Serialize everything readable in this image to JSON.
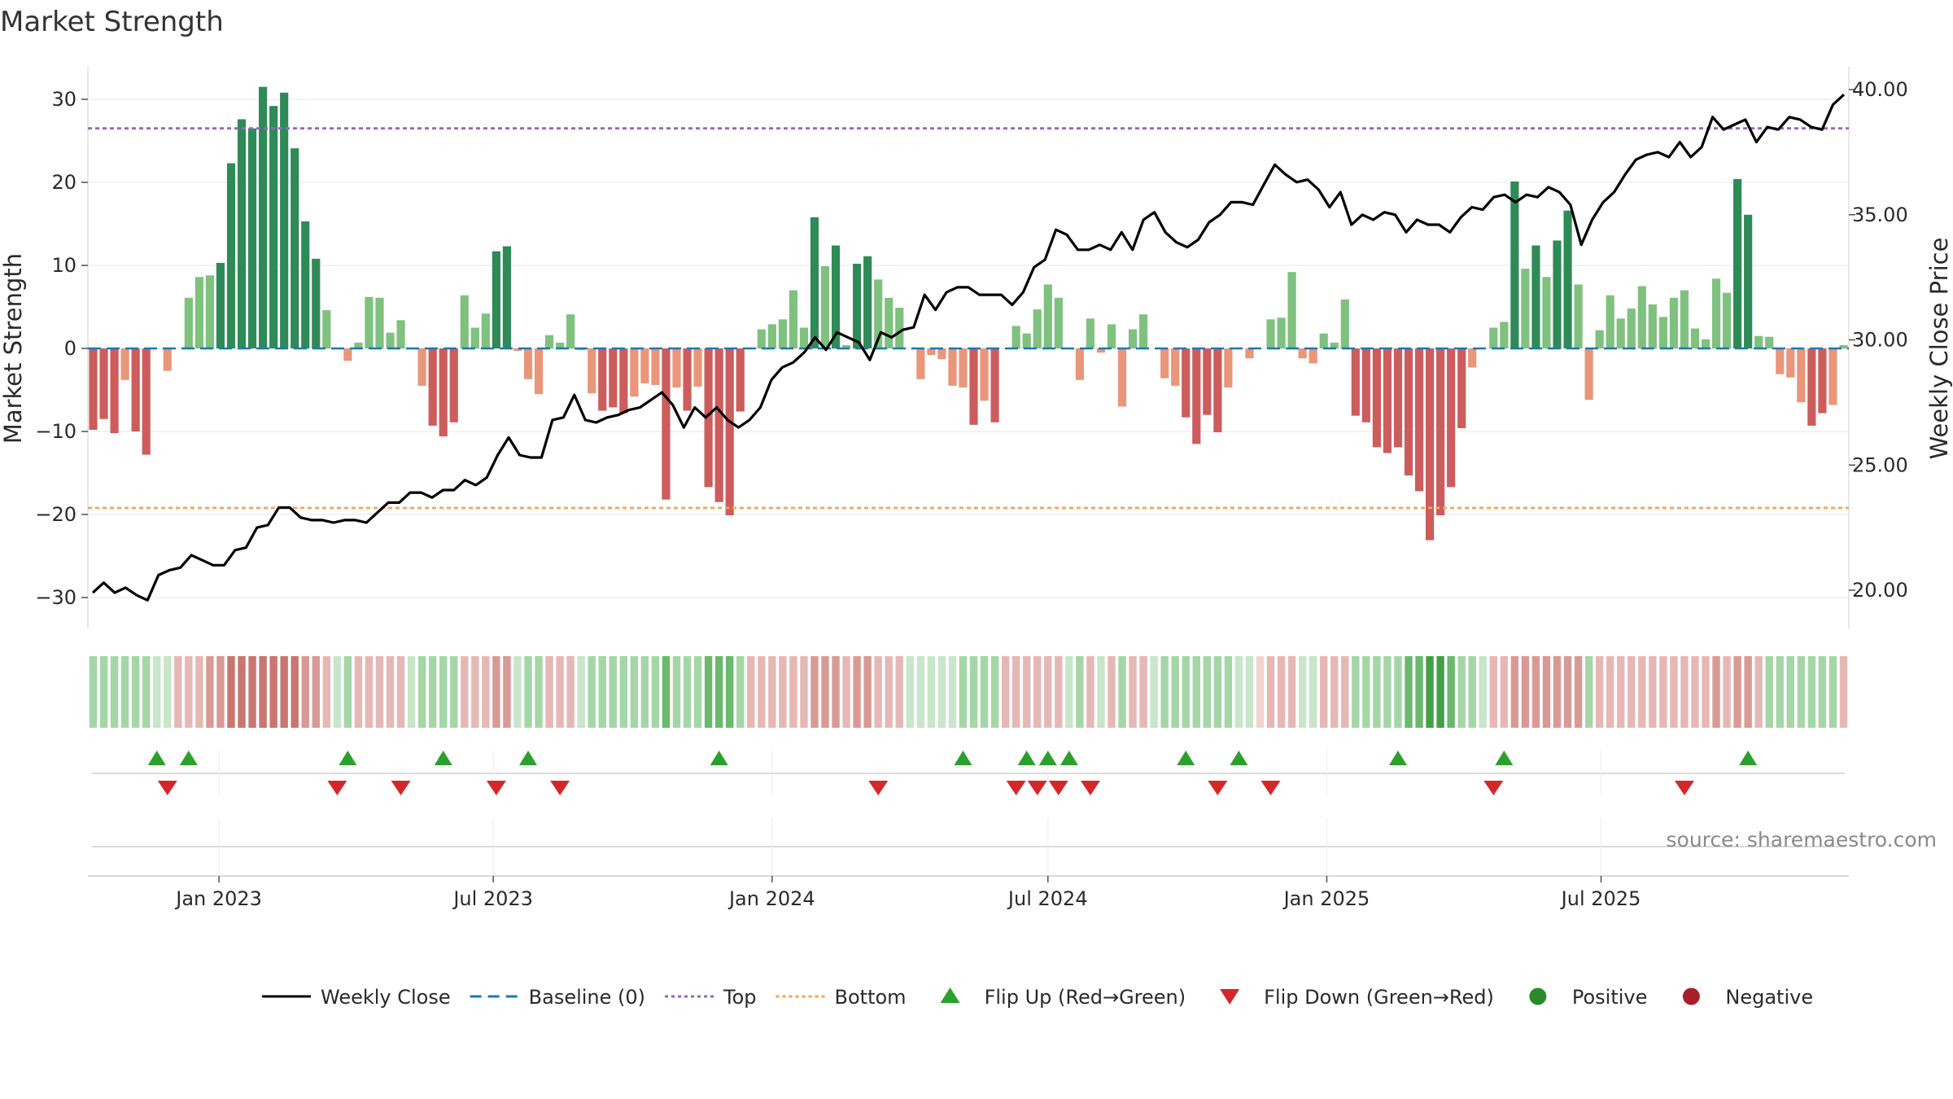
{
  "chart_data": {
    "type": "bar",
    "title": "Market Strength",
    "ylabel": "Market Strength",
    "y2label": "Weekly Close Price",
    "ylim": [
      -34,
      34
    ],
    "y2lim": [
      18.5,
      41.5
    ],
    "yticks": [
      -30,
      -20,
      -10,
      0,
      10,
      20,
      30
    ],
    "yticks_text": [
      "−30",
      "−20",
      "−10",
      "0",
      "10",
      "20",
      "30"
    ],
    "y2ticks": [
      20,
      25,
      30,
      35,
      40
    ],
    "y2ticks_text": [
      "20.00",
      "25.00",
      "30.00",
      "35.00",
      "40.00"
    ],
    "top_line": 26.5,
    "bottom_line": -19.2,
    "x_start": "2022-10-10",
    "x_end": "2025-10-06",
    "x_tick_labels": [
      {
        "date": "2023-01-01",
        "label": "Jan 2023"
      },
      {
        "date": "2023-07-01",
        "label": "Jul 2023"
      },
      {
        "date": "2024-01-01",
        "label": "Jan 2024"
      },
      {
        "date": "2024-07-01",
        "label": "Jul 2024"
      },
      {
        "date": "2025-01-01",
        "label": "Jan 2025"
      },
      {
        "date": "2025-07-01",
        "label": "Jul 2025"
      }
    ],
    "strength": [
      -9.8,
      -8.5,
      -10.2,
      -3.8,
      -10,
      -12.8,
      0,
      -2.7,
      0,
      6.1,
      8.6,
      8.8,
      10.3,
      22.3,
      27.6,
      26.5,
      31.5,
      29.2,
      30.8,
      24.1,
      15.3,
      10.8,
      4.6,
      0,
      -1.5,
      0.7,
      6.2,
      6.1,
      1.9,
      3.4,
      0,
      -4.5,
      -9.3,
      -10.6,
      -8.9,
      6.4,
      2.5,
      4.2,
      11.7,
      12.3,
      -0.3,
      -3.7,
      -5.5,
      1.6,
      0.7,
      4.1,
      -0.2,
      -5.4,
      -7.5,
      -7.1,
      -7.8,
      -5.8,
      -4.2,
      -4.4,
      -18.2,
      -4.7,
      -7.5,
      -4.6,
      -16.7,
      -18.5,
      -20.1,
      -7.6,
      0,
      2.3,
      2.9,
      3.5,
      7,
      2.5,
      15.8,
      9.9,
      12.4,
      0.4,
      10.2,
      11.1,
      8.3,
      6.1,
      4.9,
      0,
      -3.7,
      -0.8,
      -1.3,
      -4.5,
      -4.7,
      -9.2,
      -6.3,
      -8.9,
      0,
      2.7,
      1.8,
      4.7,
      7.7,
      6.1,
      0,
      -3.8,
      3.6,
      -0.5,
      2.9,
      -7,
      2.3,
      4.1,
      0,
      -3.6,
      -4.5,
      -8.3,
      -11.5,
      -8,
      -10.1,
      -4.7,
      0,
      -1.2,
      0,
      3.5,
      3.7,
      9.2,
      -1.2,
      -1.8,
      1.8,
      0.7,
      5.9,
      -8.1,
      -8.9,
      -11.9,
      -12.6,
      -11.9,
      -15.3,
      -17.2,
      -23.1,
      -20.1,
      -16.7,
      -9.6,
      -2.3,
      0,
      2.5,
      3.2,
      20.1,
      9.6,
      12.4,
      8.6,
      13,
      16.6,
      7.7,
      -6.2,
      2.2,
      6.4,
      3.6,
      4.8,
      7.5,
      5.3,
      3.8,
      6.1,
      7,
      2.4,
      1.1,
      8.4,
      6.7,
      20.4,
      16.1,
      1.5,
      1.4,
      -3.1,
      -3.5,
      -6.5,
      -9.3,
      -7.8,
      -6.8,
      0.4
    ],
    "weekly_close": [
      19.9,
      20.3,
      19.9,
      20.1,
      19.8,
      19.6,
      20.6,
      20.8,
      20.9,
      21.4,
      21.2,
      21.0,
      21.0,
      21.6,
      21.7,
      22.5,
      22.6,
      23.3,
      23.3,
      22.9,
      22.8,
      22.8,
      22.7,
      22.8,
      22.8,
      22.7,
      23.1,
      23.5,
      23.5,
      23.9,
      23.9,
      23.7,
      24.0,
      24.0,
      24.4,
      24.2,
      24.5,
      25.4,
      26.1,
      25.4,
      25.3,
      25.3,
      26.8,
      26.9,
      27.8,
      26.8,
      26.7,
      26.9,
      27.0,
      27.2,
      27.3,
      27.6,
      27.9,
      27.4,
      26.5,
      27.3,
      26.9,
      27.3,
      26.8,
      26.5,
      26.8,
      27.3,
      28.4,
      28.9,
      29.1,
      29.5,
      30.1,
      29.6,
      30.3,
      30.1,
      29.9,
      29.2,
      30.3,
      30.1,
      30.4,
      30.5,
      31.8,
      31.2,
      31.9,
      32.1,
      32.1,
      31.8,
      31.8,
      31.8,
      31.4,
      31.9,
      32.9,
      33.2,
      34.4,
      34.2,
      33.6,
      33.6,
      33.8,
      33.6,
      34.3,
      33.6,
      34.8,
      35.1,
      34.3,
      33.9,
      33.7,
      34.0,
      34.7,
      35.0,
      35.5,
      35.5,
      35.4,
      36.2,
      37.0,
      36.6,
      36.3,
      36.4,
      36.0,
      35.3,
      35.9,
      34.6,
      35.0,
      34.8,
      35.1,
      35.0,
      34.3,
      34.8,
      34.6,
      34.6,
      34.3,
      34.9,
      35.3,
      35.2,
      35.7,
      35.8,
      35.5,
      35.8,
      35.7,
      36.1,
      35.9,
      35.4,
      33.8,
      34.8,
      35.5,
      35.9,
      36.6,
      37.2,
      37.4,
      37.5,
      37.3,
      37.9,
      37.3,
      37.7,
      38.9,
      38.4,
      38.6,
      38.8,
      37.9,
      38.5,
      38.4,
      38.9,
      38.8,
      38.5,
      38.4,
      39.4,
      39.8
    ],
    "heat_strip": [
      2,
      2,
      2,
      2,
      2,
      2,
      1,
      1,
      -2,
      -2,
      -2,
      -3,
      -3,
      -4,
      -4,
      -4,
      -4,
      -4,
      -4,
      -4,
      -3,
      -3,
      -2,
      1,
      2,
      -2,
      -2,
      -2,
      -2,
      -2,
      1,
      2,
      2,
      2,
      2,
      -2,
      -2,
      -2,
      -3,
      -3,
      1,
      2,
      2,
      -2,
      -2,
      -2,
      1,
      2,
      2,
      2,
      2,
      2,
      2,
      2,
      3,
      2,
      2,
      2,
      3,
      3,
      3,
      2,
      -2,
      -2,
      -2,
      -2,
      -2,
      -2,
      -3,
      -3,
      -3,
      -2,
      -3,
      -3,
      -2,
      -2,
      -2,
      1,
      1,
      1,
      1,
      1,
      2,
      2,
      2,
      2,
      -2,
      -2,
      -2,
      -2,
      -2,
      -2,
      1,
      2,
      -2,
      1,
      -2,
      2,
      -2,
      -2,
      1,
      2,
      2,
      2,
      2,
      2,
      2,
      2,
      1,
      1,
      -1,
      -2,
      -2,
      -2,
      1,
      1,
      -2,
      -2,
      -2,
      2,
      2,
      2,
      2,
      2,
      3,
      3,
      4,
      4,
      3,
      2,
      2,
      1,
      -2,
      -2,
      -3,
      -3,
      -3,
      -3,
      -3,
      -3,
      -3,
      2,
      -2,
      -2,
      -2,
      -2,
      -2,
      -2,
      -2,
      -2,
      -2,
      -2,
      -2,
      -3,
      -2,
      -3,
      -3,
      -2,
      2,
      2,
      2,
      2,
      2,
      2,
      2,
      -2
    ],
    "flip_up_weeks": [
      6,
      9,
      24,
      33,
      41,
      59,
      82,
      88,
      90,
      92,
      103,
      108,
      123,
      133,
      156
    ],
    "flip_down_weeks": [
      7,
      23,
      29,
      38,
      44,
      74,
      87,
      89,
      91,
      94,
      106,
      111,
      132,
      150
    ],
    "top_label": "Top",
    "bottom_label": "Bottom",
    "legend": [
      {
        "key": "close",
        "label": "Weekly Close",
        "color": "#000000",
        "style": "line"
      },
      {
        "key": "baseline",
        "label": "Baseline (0)",
        "color": "#1f77b4",
        "style": "dashed"
      },
      {
        "key": "top",
        "label": "Top",
        "color": "#9467bd",
        "style": "dotted"
      },
      {
        "key": "bottom",
        "label": "Bottom",
        "color": "#ff9f43",
        "style": "dotted"
      },
      {
        "key": "flip_up",
        "label": "Flip Up (Red→Green)",
        "color": "#2ca02c",
        "style": "triangle-up"
      },
      {
        "key": "flip_down",
        "label": "Flip Down (Green→Red)",
        "color": "#d62728",
        "style": "triangle-down"
      },
      {
        "key": "positive",
        "label": "Positive",
        "color": "#2a8a2a",
        "style": "circle"
      },
      {
        "key": "negative",
        "label": "Negative",
        "color": "#a81f28",
        "style": "circle"
      }
    ],
    "legend_position": "bottom-center",
    "grid": true,
    "source": "source: sharemaestro.com",
    "colors": {
      "pos_strong": "#2e8b57",
      "pos_weak": "#7fc17f",
      "neg_strong": "#cd5c5c",
      "neg_weak": "#e9967a",
      "close_line": "#000000",
      "baseline": "#1f77b4",
      "top_line": "#9467bd",
      "bottom_line": "#f4a460"
    }
  }
}
